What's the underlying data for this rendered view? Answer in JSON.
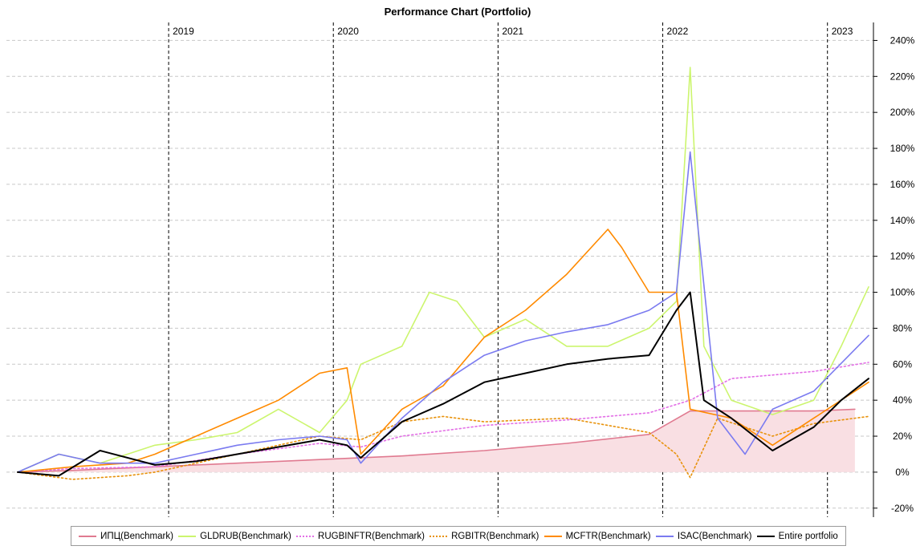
{
  "chart_data": {
    "type": "line",
    "title": "Performance Chart (Portfolio)",
    "xlabel": "",
    "ylabel": "",
    "x_range": [
      "2018-02",
      "2023-04"
    ],
    "year_labels": [
      "2019",
      "2020",
      "2021",
      "2022",
      "2023"
    ],
    "ylim": [
      -25,
      250
    ],
    "y_axis_position": "right",
    "y_ticks": [
      -20,
      0,
      20,
      40,
      60,
      80,
      100,
      120,
      140,
      160,
      180,
      200,
      220,
      240
    ],
    "y_tick_format": "{v}%",
    "grid": true,
    "legend_position": "bottom",
    "series": [
      {
        "name": "ИПЦ(Benchmark)",
        "color": "#e07a90",
        "style": "solid",
        "fill": "#f9dfe3",
        "x": [
          "2018-02",
          "2018-06",
          "2018-12",
          "2019-06",
          "2019-12",
          "2020-06",
          "2020-12",
          "2021-06",
          "2021-12",
          "2022-03",
          "2022-06",
          "2022-12",
          "2023-03"
        ],
        "values": [
          0,
          1,
          3,
          5,
          7,
          9,
          12,
          16,
          21,
          34,
          34,
          34,
          35
        ]
      },
      {
        "name": "GLDRUB(Benchmark)",
        "color": "#ccf56e",
        "style": "solid",
        "x": [
          "2018-02",
          "2018-05",
          "2018-08",
          "2018-12",
          "2019-03",
          "2019-06",
          "2019-09",
          "2019-12",
          "2020-02",
          "2020-03",
          "2020-06",
          "2020-08",
          "2020-10",
          "2020-12",
          "2021-03",
          "2021-06",
          "2021-09",
          "2021-12",
          "2022-02",
          "2022-03",
          "2022-04",
          "2022-06",
          "2022-09",
          "2022-12",
          "2023-02",
          "2023-04"
        ],
        "values": [
          0,
          10,
          5,
          15,
          18,
          22,
          35,
          22,
          40,
          60,
          70,
          100,
          95,
          75,
          85,
          70,
          70,
          80,
          95,
          225,
          70,
          40,
          32,
          40,
          70,
          103
        ]
      },
      {
        "name": "RUGBINFTR(Benchmark)",
        "color": "#e36fe6",
        "style": "dotted",
        "x": [
          "2018-02",
          "2018-06",
          "2018-12",
          "2019-06",
          "2019-12",
          "2020-03",
          "2020-06",
          "2020-12",
          "2021-06",
          "2021-12",
          "2022-03",
          "2022-06",
          "2022-12",
          "2023-04"
        ],
        "values": [
          0,
          2,
          3,
          10,
          16,
          14,
          20,
          26,
          29,
          33,
          40,
          52,
          56,
          61
        ]
      },
      {
        "name": "RGBITR(Benchmark)",
        "color": "#e8920c",
        "style": "dotted",
        "x": [
          "2018-02",
          "2018-06",
          "2018-10",
          "2018-12",
          "2019-06",
          "2019-12",
          "2020-03",
          "2020-06",
          "2020-09",
          "2020-12",
          "2021-06",
          "2021-12",
          "2022-02",
          "2022-03",
          "2022-05",
          "2022-09",
          "2022-12",
          "2023-04"
        ],
        "values": [
          0,
          -4,
          -2,
          0,
          10,
          20,
          18,
          28,
          31,
          28,
          30,
          22,
          10,
          -3,
          30,
          20,
          27,
          31
        ]
      },
      {
        "name": "MCFTR(Benchmark)",
        "color": "#ff8a00",
        "style": "solid",
        "x": [
          "2018-02",
          "2018-06",
          "2018-10",
          "2018-12",
          "2019-03",
          "2019-06",
          "2019-09",
          "2019-12",
          "2020-02",
          "2020-03",
          "2020-06",
          "2020-09",
          "2020-12",
          "2021-03",
          "2021-06",
          "2021-09",
          "2021-10",
          "2021-12",
          "2022-02",
          "2022-03",
          "2022-06",
          "2022-09",
          "2022-12",
          "2023-04"
        ],
        "values": [
          0,
          3,
          5,
          10,
          20,
          30,
          40,
          55,
          58,
          10,
          35,
          48,
          75,
          90,
          110,
          135,
          125,
          100,
          100,
          35,
          30,
          15,
          30,
          50
        ]
      },
      {
        "name": "ISAC(Benchmark)",
        "color": "#7b7bf0",
        "style": "solid",
        "x": [
          "2018-02",
          "2018-05",
          "2018-08",
          "2018-12",
          "2019-03",
          "2019-06",
          "2019-09",
          "2019-12",
          "2020-02",
          "2020-03",
          "2020-06",
          "2020-09",
          "2020-12",
          "2021-03",
          "2021-06",
          "2021-09",
          "2021-12",
          "2022-02",
          "2022-03",
          "2022-05",
          "2022-07",
          "2022-09",
          "2022-12",
          "2023-04"
        ],
        "values": [
          0,
          10,
          5,
          5,
          10,
          15,
          18,
          20,
          18,
          5,
          30,
          50,
          65,
          73,
          78,
          82,
          90,
          100,
          178,
          30,
          10,
          35,
          45,
          76
        ]
      },
      {
        "name": "Entire portfolio",
        "color": "#000000",
        "style": "solid",
        "x": [
          "2018-02",
          "2018-05",
          "2018-08",
          "2018-12",
          "2019-03",
          "2019-06",
          "2019-09",
          "2019-12",
          "2020-02",
          "2020-03",
          "2020-06",
          "2020-09",
          "2020-12",
          "2021-03",
          "2021-06",
          "2021-09",
          "2021-12",
          "2022-02",
          "2022-03",
          "2022-04",
          "2022-06",
          "2022-09",
          "2022-12",
          "2023-02",
          "2023-04"
        ],
        "values": [
          0,
          -2,
          12,
          4,
          6,
          10,
          14,
          18,
          15,
          8,
          28,
          38,
          50,
          55,
          60,
          63,
          65,
          90,
          100,
          40,
          30,
          12,
          25,
          40,
          52
        ]
      }
    ]
  }
}
